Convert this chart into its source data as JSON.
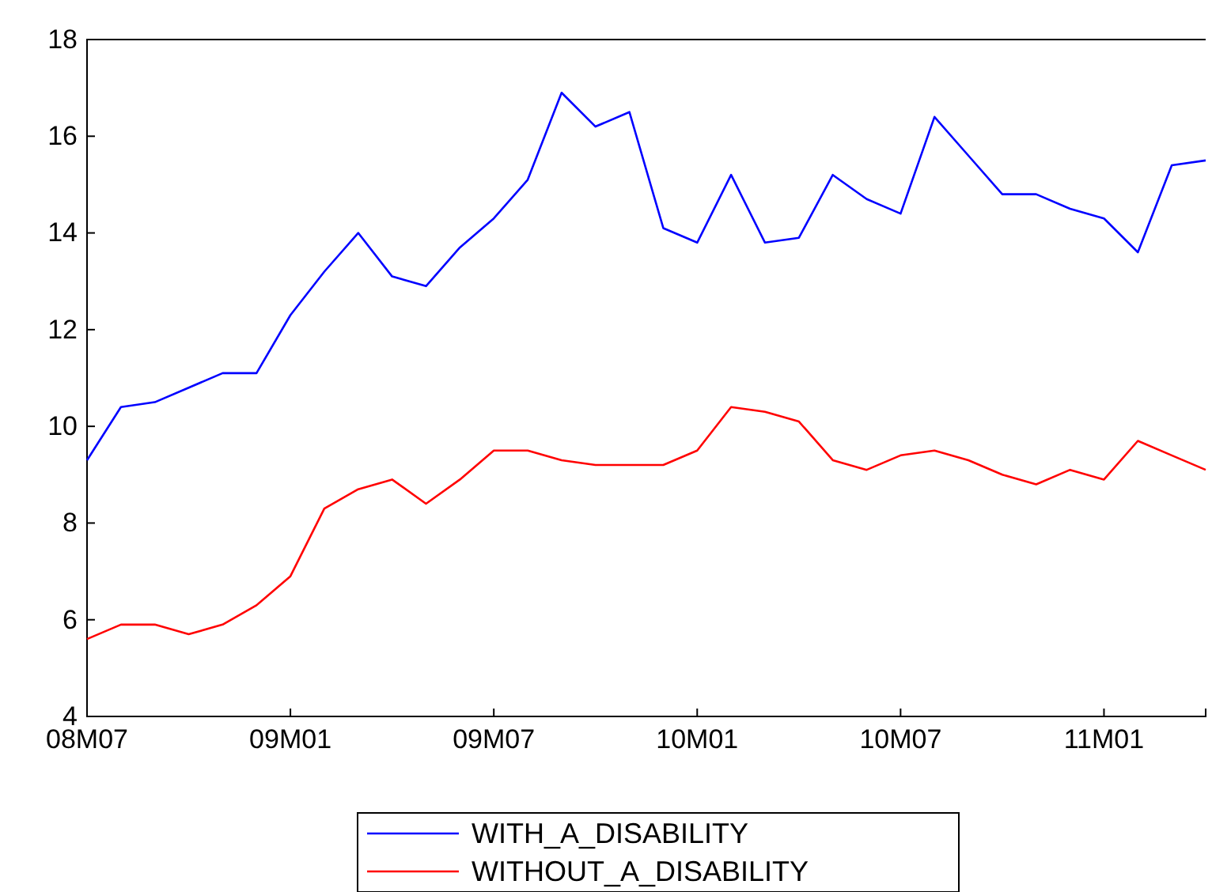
{
  "chart_data": {
    "type": "line",
    "categories": [
      "08M07",
      null,
      null,
      null,
      null,
      null,
      "09M01",
      null,
      null,
      null,
      null,
      null,
      "09M07",
      null,
      null,
      null,
      null,
      null,
      "10M01",
      null,
      null,
      null,
      null,
      null,
      "10M07",
      null,
      null,
      null,
      null,
      null,
      "11M01",
      null,
      null,
      null
    ],
    "series": [
      {
        "name": "WITH_A_DISABILITY",
        "color": "#0000ff",
        "values": [
          9.3,
          10.4,
          10.5,
          10.8,
          11.1,
          11.1,
          12.3,
          13.2,
          14.0,
          13.1,
          12.9,
          13.7,
          14.3,
          15.1,
          16.9,
          16.2,
          16.5,
          14.1,
          13.8,
          15.2,
          13.8,
          13.9,
          15.2,
          14.7,
          14.4,
          16.4,
          15.6,
          14.8,
          14.8,
          14.5,
          14.3,
          13.6,
          15.4,
          15.5
        ]
      },
      {
        "name": "WITHOUT_A_DISABILITY",
        "color": "#ff0000",
        "values": [
          5.6,
          5.9,
          5.9,
          5.7,
          5.9,
          6.3,
          6.9,
          8.3,
          8.7,
          8.9,
          8.4,
          8.9,
          9.5,
          9.5,
          9.3,
          9.2,
          9.2,
          9.2,
          9.5,
          10.4,
          10.3,
          10.1,
          9.3,
          9.1,
          9.4,
          9.5,
          9.3,
          9.0,
          8.8,
          9.1,
          8.9,
          9.7,
          9.4,
          9.1
        ]
      }
    ],
    "ylim": [
      4,
      18
    ],
    "yticks": [
      4,
      6,
      8,
      10,
      12,
      14,
      16,
      18
    ],
    "legend": "bottom"
  }
}
